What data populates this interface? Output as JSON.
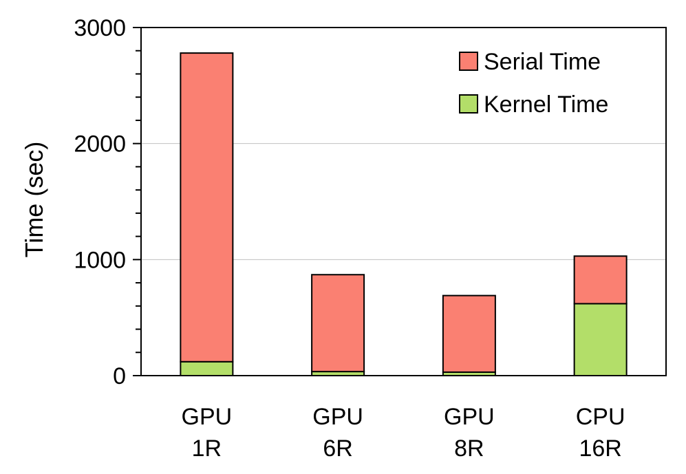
{
  "chart_data": {
    "type": "bar",
    "stacked": true,
    "categories": [
      [
        "GPU",
        "1R"
      ],
      [
        "GPU",
        "6R"
      ],
      [
        "GPU",
        "8R"
      ],
      [
        "CPU",
        "16R"
      ]
    ],
    "series": [
      {
        "name": "Kernel Time",
        "values": [
          120,
          35,
          30,
          620
        ],
        "color": "#b3de69"
      },
      {
        "name": "Serial Time",
        "values": [
          2660,
          835,
          660,
          410
        ],
        "color": "#fa8072"
      }
    ],
    "ylabel": "Time (sec)",
    "ylim": [
      0,
      3000
    ],
    "yticks": [
      0,
      1000,
      2000,
      3000
    ],
    "grid": true,
    "legend": "top-right"
  }
}
